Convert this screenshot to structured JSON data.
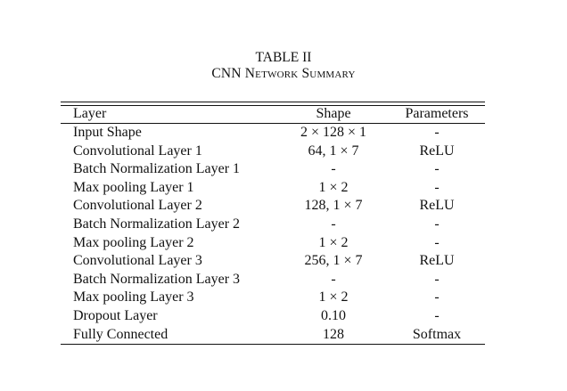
{
  "caption": {
    "label": "TABLE II",
    "title": "CNN Network Summary"
  },
  "table": {
    "headers": [
      "Layer",
      "Shape",
      "Parameters"
    ],
    "rows": [
      [
        "Input Shape",
        "2 × 128 × 1",
        "-"
      ],
      [
        "Convolutional Layer 1",
        "64, 1 × 7",
        "ReLU"
      ],
      [
        "Batch Normalization Layer 1",
        "-",
        "-"
      ],
      [
        "Max pooling Layer 1",
        "1 × 2",
        "-"
      ],
      [
        "Convolutional Layer 2",
        "128, 1 × 7",
        "ReLU"
      ],
      [
        "Batch Normalization Layer 2",
        "-",
        "-"
      ],
      [
        "Max pooling Layer 2",
        "1 × 2",
        "-"
      ],
      [
        "Convolutional Layer 3",
        "256, 1 × 7",
        "ReLU"
      ],
      [
        "Batch Normalization Layer 3",
        "-",
        "-"
      ],
      [
        "Max pooling Layer 3",
        "1 × 2",
        "-"
      ],
      [
        "Dropout Layer",
        "0.10",
        "-"
      ],
      [
        "Fully Connected",
        "128",
        "Softmax"
      ]
    ]
  }
}
